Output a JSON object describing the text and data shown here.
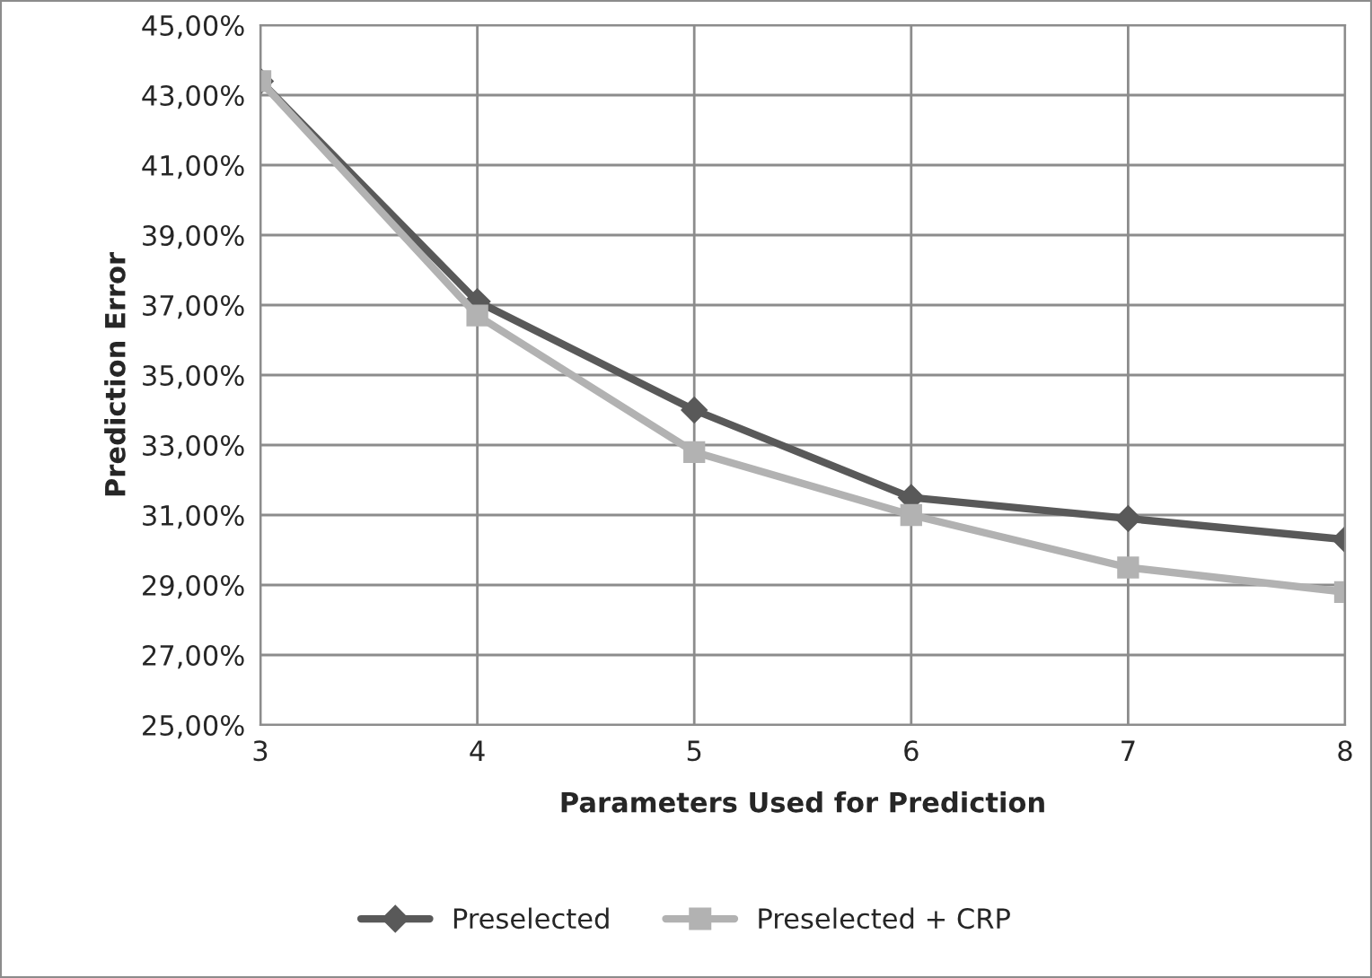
{
  "chart_data": {
    "type": "line",
    "xlabel": "Parameters Used for Prediction",
    "ylabel": "Prediction Error",
    "x": [
      3,
      4,
      5,
      6,
      7,
      8
    ],
    "series": [
      {
        "name": "Preselected",
        "color": "#595959",
        "marker": "diamond",
        "values": [
          43.4,
          37.1,
          34.0,
          31.5,
          30.9,
          30.3
        ]
      },
      {
        "name": "Preselected + CRP",
        "color": "#b2b2b2",
        "marker": "square",
        "values": [
          43.4,
          36.7,
          32.8,
          31.0,
          29.5,
          28.8
        ]
      }
    ],
    "xlim": [
      3,
      8
    ],
    "xticks": [
      3,
      4,
      5,
      6,
      7,
      8
    ],
    "ylim": [
      25,
      45
    ],
    "yticks": [
      {
        "value": 25,
        "label": "25,00%"
      },
      {
        "value": 27,
        "label": "27,00%"
      },
      {
        "value": 29,
        "label": "29,00%"
      },
      {
        "value": 31,
        "label": "31,00%"
      },
      {
        "value": 33,
        "label": "33,00%"
      },
      {
        "value": 35,
        "label": "35,00%"
      },
      {
        "value": 37,
        "label": "37,00%"
      },
      {
        "value": 39,
        "label": "39,00%"
      },
      {
        "value": 41,
        "label": "41,00%"
      },
      {
        "value": 43,
        "label": "43,00%"
      },
      {
        "value": 45,
        "label": "45,00%"
      }
    ],
    "grid": true,
    "legend": "bottom",
    "line_style": "solid"
  }
}
